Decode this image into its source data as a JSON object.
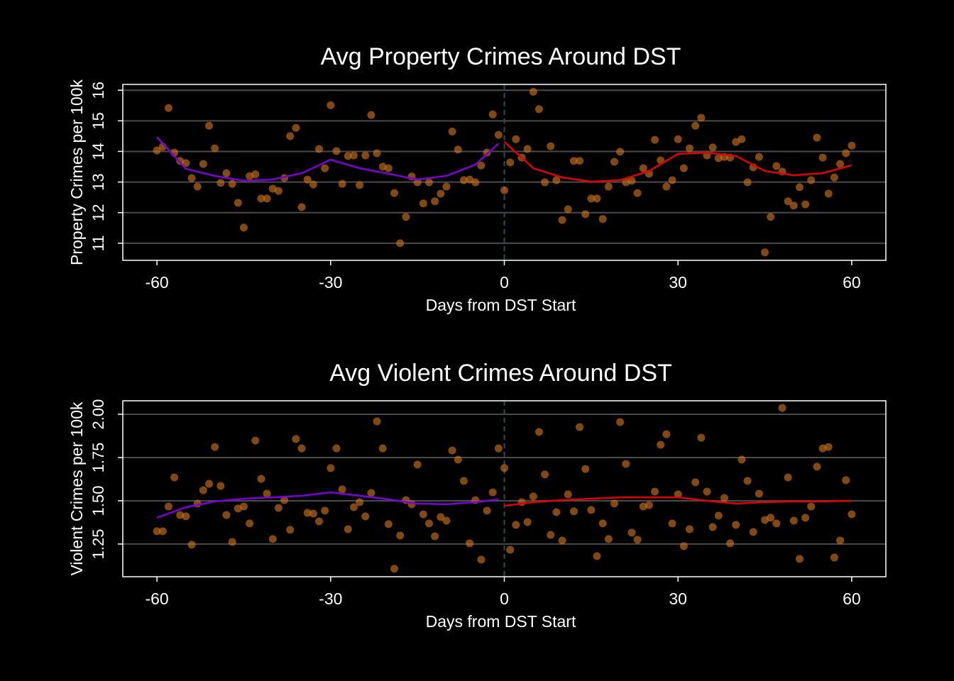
{
  "chart_data": [
    {
      "type": "scatter",
      "title": "Avg Property Crimes Around DST",
      "x_label": "Days from DST Start",
      "y_label": "Property Crimes per 100k",
      "x": [
        -60,
        -59,
        -58,
        -57,
        -56,
        -55,
        -54,
        -53,
        -52,
        -51,
        -50,
        -49,
        -48,
        -47,
        -46,
        -45,
        -44,
        -43,
        -42,
        -41,
        -40,
        -39,
        -38,
        -37,
        -36,
        -35,
        -34,
        -33,
        -32,
        -31,
        -30,
        -29,
        -28,
        -27,
        -26,
        -25,
        -24,
        -23,
        -22,
        -21,
        -20,
        -19,
        -18,
        -17,
        -16,
        -15,
        -14,
        -13,
        -12,
        -11,
        -10,
        -9,
        -8,
        -7,
        -6,
        -5,
        -4,
        -3,
        -2,
        -1,
        0,
        1,
        2,
        3,
        4,
        5,
        6,
        7,
        8,
        9,
        10,
        11,
        12,
        13,
        14,
        15,
        16,
        17,
        18,
        19,
        20,
        21,
        22,
        23,
        24,
        25,
        26,
        27,
        28,
        29,
        30,
        31,
        32,
        33,
        34,
        35,
        36,
        37,
        38,
        39,
        40,
        41,
        42,
        43,
        44,
        45,
        46,
        47,
        48,
        49,
        50,
        51,
        52,
        53,
        54,
        55,
        56,
        57,
        58,
        59,
        60
      ],
      "values": [
        14.03,
        14.15,
        15.42,
        13.96,
        13.69,
        13.62,
        13.13,
        12.85,
        13.59,
        14.84,
        14.1,
        12.97,
        13.29,
        12.94,
        12.32,
        11.51,
        13.19,
        13.25,
        12.46,
        12.46,
        12.78,
        12.71,
        13.13,
        14.5,
        14.77,
        12.18,
        13.08,
        12.92,
        14.08,
        13.45,
        15.51,
        14.01,
        12.94,
        13.85,
        13.87,
        12.9,
        13.87,
        15.19,
        13.94,
        13.5,
        13.45,
        12.64,
        11.0,
        11.86,
        13.18,
        12.99,
        12.3,
        12.99,
        12.37,
        12.62,
        12.85,
        14.65,
        14.06,
        13.06,
        13.08,
        12.99,
        13.54,
        13.96,
        15.21,
        14.54,
        12.73,
        13.64,
        14.4,
        13.8,
        14.08,
        15.95,
        15.38,
        12.99,
        14.17,
        13.06,
        11.76,
        12.11,
        13.69,
        13.69,
        11.95,
        12.46,
        12.46,
        11.79,
        12.85,
        13.66,
        13.99,
        12.99,
        13.04,
        12.64,
        13.45,
        13.27,
        14.38,
        13.71,
        12.85,
        13.06,
        14.4,
        13.45,
        14.1,
        14.84,
        15.1,
        13.87,
        14.13,
        13.78,
        13.82,
        13.8,
        14.31,
        14.4,
        12.99,
        13.48,
        13.82,
        10.7,
        11.86,
        13.52,
        13.34,
        12.37,
        12.23,
        12.83,
        12.27,
        13.06,
        14.45,
        13.8,
        12.62,
        13.15,
        13.59,
        13.94,
        14.19
      ],
      "color": "#c8701e",
      "smooth": [
        {
          "color": "#7c00d6",
          "x": [
            -60,
            -55,
            -50,
            -45,
            -40,
            -35,
            -30,
            -25,
            -20,
            -15,
            -10,
            -5,
            -1
          ],
          "values": [
            14.47,
            13.43,
            13.2,
            13.04,
            13.08,
            13.29,
            13.73,
            13.45,
            13.27,
            13.08,
            13.2,
            13.57,
            14.26
          ]
        },
        {
          "color": "#e00000",
          "x": [
            0,
            5,
            10,
            15,
            20,
            25,
            30,
            35,
            40,
            45,
            50,
            55,
            60
          ],
          "values": [
            14.31,
            13.45,
            13.15,
            13.01,
            13.06,
            13.36,
            13.92,
            13.96,
            13.85,
            13.36,
            13.22,
            13.29,
            13.55
          ]
        }
      ],
      "vline": 0,
      "vline_color": "#2f4f4f",
      "xlim": [
        -65.9,
        65.9
      ],
      "xticks": [
        -60,
        -30,
        0,
        30,
        60
      ],
      "ylim": [
        10.44,
        16.19
      ],
      "yticks": [
        11,
        12,
        13,
        14,
        15,
        16
      ],
      "grid": true
    },
    {
      "type": "scatter",
      "title": "Avg Violent Crimes Around DST",
      "x_label": "Days from DST Start",
      "y_label": "Violent Crimes per 100k",
      "x": [
        -60,
        -59,
        -58,
        -57,
        -56,
        -55,
        -54,
        -53,
        -52,
        -51,
        -50,
        -49,
        -48,
        -47,
        -46,
        -45,
        -44,
        -43,
        -42,
        -41,
        -40,
        -39,
        -38,
        -37,
        -36,
        -35,
        -34,
        -33,
        -32,
        -31,
        -30,
        -29,
        -28,
        -27,
        -26,
        -25,
        -24,
        -23,
        -22,
        -21,
        -20,
        -19,
        -18,
        -17,
        -16,
        -15,
        -14,
        -13,
        -12,
        -11,
        -10,
        -9,
        -8,
        -7,
        -6,
        -5,
        -4,
        -3,
        -2,
        -1,
        0,
        1,
        2,
        3,
        4,
        5,
        6,
        7,
        8,
        9,
        10,
        11,
        12,
        13,
        14,
        15,
        16,
        17,
        18,
        19,
        20,
        21,
        22,
        23,
        24,
        25,
        26,
        27,
        28,
        29,
        30,
        31,
        32,
        33,
        34,
        35,
        36,
        37,
        38,
        39,
        40,
        41,
        42,
        43,
        44,
        45,
        46,
        47,
        48,
        49,
        50,
        51,
        52,
        53,
        54,
        55,
        56,
        57,
        58,
        59,
        60
      ],
      "values": [
        1.324,
        1.324,
        1.467,
        1.635,
        1.418,
        1.41,
        1.246,
        1.484,
        1.561,
        1.598,
        1.811,
        1.586,
        1.418,
        1.262,
        1.455,
        1.467,
        1.369,
        1.848,
        1.627,
        1.541,
        1.279,
        1.459,
        1.504,
        1.332,
        1.857,
        1.803,
        1.43,
        1.426,
        1.381,
        1.443,
        1.689,
        1.803,
        1.566,
        1.336,
        1.463,
        1.492,
        1.41,
        1.545,
        1.959,
        1.803,
        1.365,
        1.107,
        1.299,
        1.504,
        1.48,
        1.709,
        1.422,
        1.369,
        1.295,
        1.406,
        1.385,
        1.791,
        1.738,
        1.615,
        1.254,
        1.504,
        1.16,
        1.443,
        1.549,
        1.803,
        1.689,
        1.217,
        1.361,
        1.492,
        1.377,
        1.525,
        1.898,
        1.652,
        1.303,
        1.434,
        1.27,
        1.537,
        1.439,
        1.926,
        1.684,
        1.447,
        1.18,
        1.369,
        1.279,
        1.484,
        1.955,
        1.713,
        1.316,
        1.275,
        1.467,
        1.475,
        1.553,
        1.824,
        1.885,
        1.369,
        1.537,
        1.238,
        1.336,
        1.607,
        1.865,
        1.553,
        1.348,
        1.414,
        1.516,
        1.254,
        1.361,
        1.738,
        1.615,
        1.32,
        1.541,
        1.389,
        1.402,
        1.369,
        2.037,
        1.635,
        1.385,
        1.164,
        1.402,
        1.467,
        1.697,
        1.803,
        1.811,
        1.172,
        1.27,
        1.619,
        1.422
      ],
      "color": "#c8701e",
      "smooth": [
        {
          "color": "#7c00d6",
          "x": [
            -60,
            -55,
            -50,
            -45,
            -40,
            -35,
            -30,
            -25,
            -20,
            -15,
            -10,
            -5,
            -1
          ],
          "values": [
            1.402,
            1.463,
            1.496,
            1.512,
            1.52,
            1.529,
            1.549,
            1.529,
            1.508,
            1.484,
            1.48,
            1.492,
            1.508
          ]
        },
        {
          "color": "#e00000",
          "x": [
            0,
            5,
            10,
            15,
            20,
            25,
            30,
            35,
            40,
            45,
            50,
            55,
            60
          ],
          "values": [
            1.471,
            1.492,
            1.504,
            1.512,
            1.52,
            1.52,
            1.52,
            1.5,
            1.484,
            1.492,
            1.496,
            1.496,
            1.5
          ]
        }
      ],
      "vline": 0,
      "vline_color": "#2f4f4f",
      "xlim": [
        -65.9,
        65.9
      ],
      "xticks": [
        -60,
        -30,
        0,
        30,
        60
      ],
      "ylim": [
        1.061,
        2.078
      ],
      "yticks": [
        {
          "value": 1.25,
          "label": "1.25"
        },
        {
          "value": 1.5,
          "label": "1.50"
        },
        {
          "value": 1.75,
          "label": "1.75"
        },
        {
          "value": 2,
          "label": "2.00"
        }
      ],
      "grid": true
    }
  ]
}
